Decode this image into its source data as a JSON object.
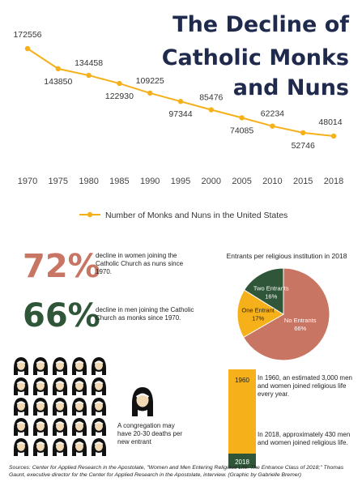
{
  "title": {
    "line1": "The Decline of",
    "line2": "Catholic Monks",
    "line3": "and Nuns"
  },
  "chart_data": [
    {
      "type": "line",
      "x": [
        "1970",
        "1975",
        "1980",
        "1985",
        "1990",
        "1995",
        "2000",
        "2005",
        "2010",
        "2015",
        "2018"
      ],
      "series": [
        {
          "name": "Number of Monks and Nuns in the United States",
          "values": [
            172556,
            143850,
            134458,
            122930,
            109225,
            97344,
            85476,
            74085,
            62234,
            52746,
            48014
          ],
          "labels": [
            "172556",
            "143850",
            "134458",
            "122930",
            "109225",
            "97344",
            "85476",
            "74085",
            "62234",
            "52746",
            "48014"
          ]
        }
      ],
      "legend": "bottom",
      "color": "#f5b01a"
    },
    {
      "type": "pie",
      "title": "Entrants per religious institution in 2018",
      "slices": [
        {
          "name": "No Entrants",
          "value": 66,
          "label": "66%",
          "color": "#c87563"
        },
        {
          "name": "One Entrant",
          "value": 17,
          "label": "17%",
          "color": "#f5b01a"
        },
        {
          "name": "Two Entrants",
          "value": 16,
          "label": "16%",
          "color": "#2f5638"
        }
      ]
    },
    {
      "type": "bar",
      "categories": [
        "1960",
        "2018"
      ],
      "values": [
        3000,
        430
      ],
      "colors": [
        "#f5b01a",
        "#2f5638"
      ]
    }
  ],
  "stats": [
    {
      "value": "72%",
      "color": "#c87563",
      "text": "decline in women joining the Catholic Church as nuns since 1970."
    },
    {
      "value": "66%",
      "color": "#2f5638",
      "text": "decline in men joining the Catholic Church as monks since 1970."
    }
  ],
  "congregation_note": "A congregation may have 20-30 deaths per new entrant",
  "bar_notes": {
    "y1960": "In 1960, an estimated 3,000 men and women joined religious life every year.",
    "y2018": "In 2018, approximately 430 men and women joined religious life."
  },
  "sources": "Sources: Center for Applied Research in the Apostolate, \"Women and Men Entering Religious Life: The Entrance Class of 2018;\" Thomas Gaunt, executive director for the Center for Applied Research in the Apostolate, interview. (Graphic by Gabrielle Bremer)",
  "icons": {
    "nun": "nun-icon"
  }
}
